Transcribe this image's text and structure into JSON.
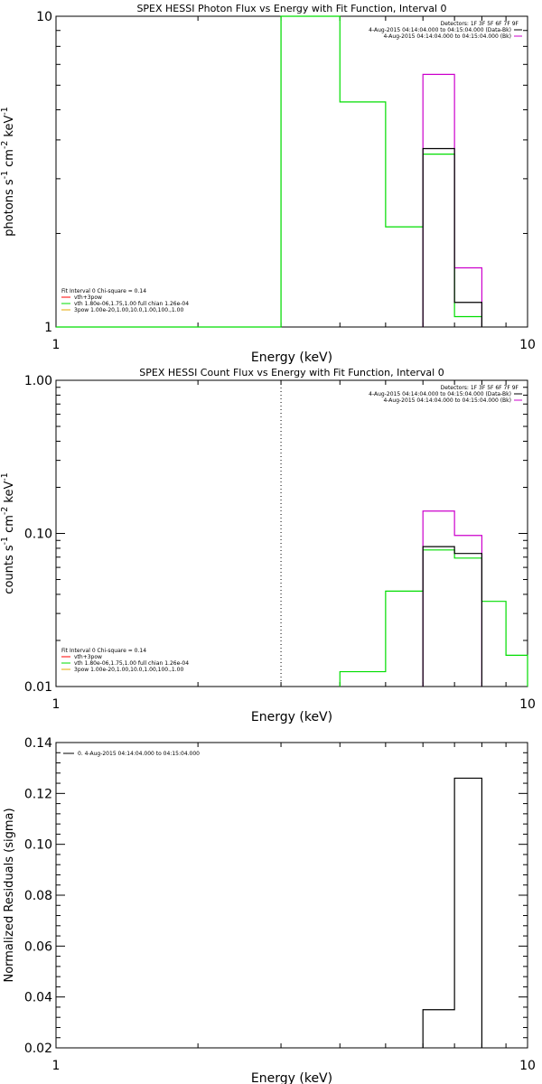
{
  "colors": {
    "background": "#ffffff",
    "axis": "#000000",
    "model": "#000000",
    "data_bkg_sub": "#cc00cc",
    "fit_total": "#00dd00",
    "vth": "#ff0000",
    "legend_line": "#ff0000"
  },
  "chart_data": [
    {
      "type": "line",
      "title": "SPEX HESSI Photon Flux vs Energy with Fit Function, Interval 0",
      "xlabel": "Energy (keV)",
      "ylabel": "photons s^-1 cm^-2 keV^-1",
      "xscale": "log",
      "yscale": "log",
      "xlim": [
        1,
        10
      ],
      "ylim": [
        1,
        10
      ],
      "xtick_labels": [
        {
          "v": 1,
          "t": "1"
        },
        {
          "v": 10,
          "t": "10"
        }
      ],
      "ytick_labels": [
        {
          "v": 1,
          "t": "1"
        },
        {
          "v": 10,
          "t": "10"
        }
      ],
      "right_legend": [
        {
          "text": "Detectors: 1F 3F 5F 6F 7F 9F",
          "color": null
        },
        {
          "text": "4-Aug-2015 04:14:04.000 to 04:15:04.000 (Data-Bk)",
          "color": "#000000"
        },
        {
          "text": "4-Aug-2015 04:14:04.000 to 04:15:04.000 (Bk)",
          "color": "#cc00cc"
        }
      ],
      "left_legend": [
        {
          "text": "Fit Interval 0   Chi-square = 0.14",
          "color": null
        },
        {
          "text": "vth+3pow",
          "color": "#ff0000"
        },
        {
          "text": "vth 1.80e-06,1.75,1.00  full chian 1.26e-04",
          "color": "#00dd00"
        },
        {
          "text": "3pow 1.00e-20,1.00,10.0,1.00,100.,1.00",
          "color": "#e6a800"
        }
      ],
      "vline": {
        "x": 3,
        "color": "#00aa00",
        "dash": false
      },
      "series": [
        {
          "color": "#00dd00",
          "steps": [
            [
              1.0,
              3.0,
              0.001
            ],
            [
              3.0,
              4.0,
              30
            ],
            [
              4.0,
              5.0,
              5.3
            ],
            [
              5.0,
              6.0,
              2.1
            ],
            [
              6.0,
              7.0,
              3.6
            ],
            [
              7.0,
              8.0,
              1.08
            ]
          ]
        },
        {
          "color": "#cc00cc",
          "steps": [
            [
              6.0,
              7.0,
              6.5
            ],
            [
              7.0,
              8.0,
              1.55
            ]
          ]
        },
        {
          "color": "#000000",
          "steps": [
            [
              6.0,
              7.0,
              3.75
            ],
            [
              7.0,
              8.0,
              1.2
            ]
          ]
        }
      ]
    },
    {
      "type": "line",
      "title": "SPEX HESSI Count Flux vs Energy with Fit Function, Interval 0",
      "xlabel": "Energy (keV)",
      "ylabel": "counts s^-1 cm^-2 keV^-1",
      "xscale": "log",
      "yscale": "log",
      "xlim": [
        1,
        10
      ],
      "ylim": [
        0.01,
        1.0
      ],
      "xtick_labels": [
        {
          "v": 1,
          "t": "1"
        },
        {
          "v": 10,
          "t": "10"
        }
      ],
      "ytick_labels": [
        {
          "v": 0.01,
          "t": "0.01"
        },
        {
          "v": 0.1,
          "t": "0.10"
        },
        {
          "v": 1.0,
          "t": "1.00"
        }
      ],
      "right_legend": [
        {
          "text": "Detectors: 1F 3F 5F 6F 7F 9F",
          "color": null
        },
        {
          "text": "4-Aug-2015 04:14:04.000 to 04:15:04.000 (Data-Bk)",
          "color": "#000000"
        },
        {
          "text": "4-Aug-2015 04:14:04.000 to 04:15:04.000 (Bk)",
          "color": "#cc00cc"
        }
      ],
      "left_legend": [
        {
          "text": "Fit Interval 0   Chi-square = 0.14",
          "color": null
        },
        {
          "text": "vth+3pow",
          "color": "#ff0000"
        },
        {
          "text": "vth 1.80e-06,1.75,1.00  full chian 1.26e-04",
          "color": "#00dd00"
        },
        {
          "text": "3pow 1.00e-20,1.00,10.0,1.00,100.,1.00",
          "color": "#e6a800"
        }
      ],
      "vline": {
        "x": 3,
        "color": "#000000",
        "dash": true
      },
      "series": [
        {
          "color": "#00dd00",
          "steps": [
            [
              4.0,
              5.0,
              0.0125
            ],
            [
              5.0,
              6.0,
              0.042
            ],
            [
              6.0,
              7.0,
              0.078
            ],
            [
              7.0,
              8.0,
              0.069
            ],
            [
              8.0,
              9.0,
              0.036
            ],
            [
              9.0,
              10.0,
              0.016
            ]
          ]
        },
        {
          "color": "#cc00cc",
          "steps": [
            [
              6.0,
              7.0,
              0.14
            ],
            [
              7.0,
              8.0,
              0.097
            ]
          ]
        },
        {
          "color": "#000000",
          "steps": [
            [
              6.0,
              7.0,
              0.082
            ],
            [
              7.0,
              8.0,
              0.074
            ]
          ]
        }
      ]
    },
    {
      "type": "bar",
      "title": "",
      "xlabel": "Energy (keV)",
      "ylabel": "Normalized Residuals (sigma)",
      "xscale": "log",
      "yscale": "linear",
      "xlim": [
        1,
        10
      ],
      "ylim": [
        0.02,
        0.14
      ],
      "xtick_labels": [
        {
          "v": 1,
          "t": "1"
        },
        {
          "v": 10,
          "t": "10"
        }
      ],
      "ytick_labels": [
        {
          "v": 0.02,
          "t": "0.02"
        },
        {
          "v": 0.04,
          "t": "0.04"
        },
        {
          "v": 0.06,
          "t": "0.06"
        },
        {
          "v": 0.08,
          "t": "0.08"
        },
        {
          "v": 0.1,
          "t": "0.10"
        },
        {
          "v": 0.12,
          "t": "0.12"
        },
        {
          "v": 0.14,
          "t": "0.14"
        }
      ],
      "top_legend": [
        {
          "text": "0.  4-Aug-2015 04:14:04.000 to 04:15:04.000",
          "color": "#000000"
        }
      ],
      "series": [
        {
          "color": "#000000",
          "steps": [
            [
              6.0,
              7.0,
              0.035
            ],
            [
              7.0,
              8.0,
              0.126
            ]
          ]
        }
      ]
    }
  ]
}
